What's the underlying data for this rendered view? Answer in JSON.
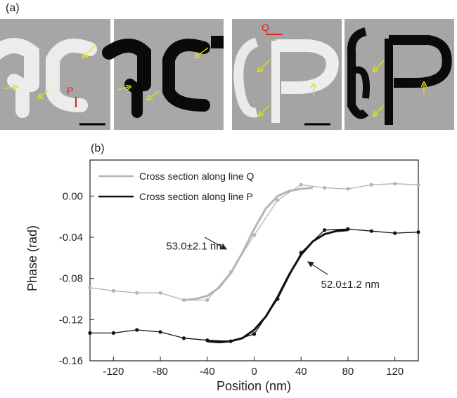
{
  "panel_a": {
    "label": "(a)",
    "marker_p": "P",
    "marker_q": "Q",
    "colors": {
      "marker": "#e02020",
      "arrow": "#e6e600",
      "scalebar": "#000000"
    }
  },
  "panel_b": {
    "label": "(b)"
  },
  "chart_data": {
    "type": "line",
    "title": "",
    "xlabel": "Position (nm)",
    "ylabel": "Phase (rad)",
    "xlim": [
      -140,
      140
    ],
    "ylim": [
      -0.16,
      0.035
    ],
    "xticks": [
      -120,
      -80,
      -40,
      0,
      40,
      80,
      120
    ],
    "yticks": [
      0.0,
      -0.04,
      -0.08,
      -0.12,
      -0.16
    ],
    "xtick_labels": [
      "-120",
      "-80",
      "-40",
      "0",
      "40",
      "80",
      "120"
    ],
    "ytick_labels": [
      "0.00",
      "-0.04",
      "-0.08",
      "-0.12",
      "-0.16"
    ],
    "legend_position": "top-center",
    "series": [
      {
        "name": "Cross section along line Q",
        "color": "#b4b4b4",
        "x": [
          -140,
          -120,
          -100,
          -80,
          -60,
          -40,
          -20,
          0,
          20,
          40,
          60,
          80,
          100,
          120,
          140
        ],
        "y": [
          -0.089,
          -0.092,
          -0.094,
          -0.094,
          -0.101,
          -0.101,
          -0.074,
          -0.038,
          -0.004,
          0.011,
          0.008,
          0.007,
          0.011,
          0.012,
          0.011
        ]
      },
      {
        "name": "Cross section along line P",
        "color": "#111111",
        "x": [
          -140,
          -120,
          -100,
          -80,
          -60,
          -40,
          -20,
          0,
          20,
          40,
          60,
          80,
          100,
          120,
          140
        ],
        "y": [
          -0.133,
          -0.133,
          -0.13,
          -0.132,
          -0.138,
          -0.14,
          -0.141,
          -0.134,
          -0.1,
          -0.055,
          -0.033,
          -0.032,
          -0.034,
          -0.036,
          -0.035
        ]
      }
    ],
    "fits": [
      {
        "color": "#b4b4b4",
        "x": [
          -60,
          -50,
          -40,
          -30,
          -20,
          -10,
          0,
          10,
          20,
          30,
          40,
          50
        ],
        "y": [
          -0.101,
          -0.1,
          -0.097,
          -0.089,
          -0.075,
          -0.055,
          -0.032,
          -0.012,
          0.0,
          0.005,
          0.007,
          0.008
        ]
      },
      {
        "color": "#111111",
        "x": [
          -40,
          -30,
          -20,
          -10,
          0,
          10,
          20,
          30,
          40,
          50,
          60,
          70,
          80
        ],
        "y": [
          -0.141,
          -0.142,
          -0.141,
          -0.138,
          -0.13,
          -0.117,
          -0.098,
          -0.076,
          -0.057,
          -0.044,
          -0.037,
          -0.034,
          -0.033
        ]
      }
    ],
    "annotations": [
      {
        "text": "53.0±2.1 nm",
        "x": -14,
        "y": -0.054,
        "text_x": -75,
        "text_y": -0.052,
        "anchor": "start"
      },
      {
        "text": "52.0±1.2 nm",
        "x": 46,
        "y": -0.063,
        "text_x": 57,
        "text_y": -0.089,
        "anchor": "start"
      }
    ]
  }
}
